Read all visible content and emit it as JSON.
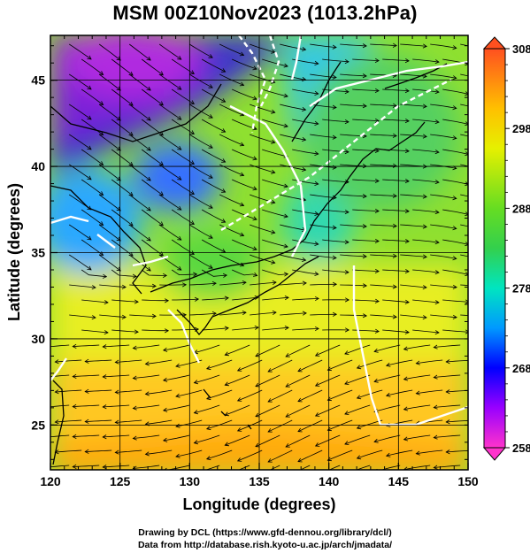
{
  "header": {
    "title": "MSM 00Z10Nov2023 (1013.2hPa)"
  },
  "map": {
    "x_axis_label": "Longitude (degrees)",
    "y_axis_label": "Latitude  (degrees)",
    "x_ticks": [
      120,
      125,
      130,
      135,
      140,
      145,
      150
    ],
    "y_ticks": [
      25,
      30,
      35,
      40,
      45
    ],
    "lon_range": [
      120,
      150
    ],
    "lat_range": [
      22.4,
      47.6
    ],
    "field": "temperature (K) with wind streamlines",
    "colorbar": {
      "ticks": [
        258,
        268,
        278,
        288,
        298,
        308
      ],
      "range": [
        258,
        308
      ],
      "colors": [
        "#ff33cc",
        "#7f00ff",
        "#0000ff",
        "#00bfff",
        "#00d2a0",
        "#33cc33",
        "#99e600",
        "#ffff00",
        "#ffb000",
        "#ff4000"
      ]
    }
  },
  "footer": {
    "line1": "Drawing by DCL (https://www.gfd-dennou.org/library/dcl/)",
    "line2": "Data from http://database.rish.kyoto-u.ac.jp/arch/jmadata/"
  }
}
